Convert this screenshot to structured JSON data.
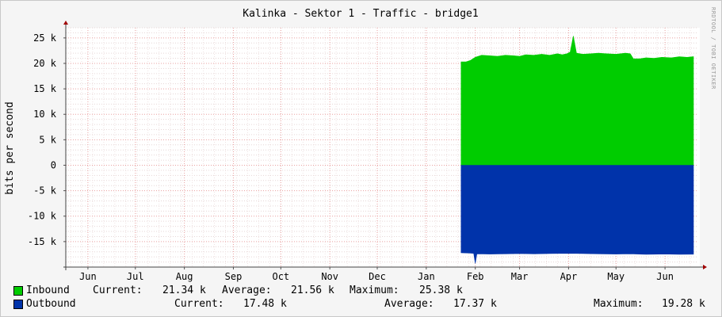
{
  "chart_data": {
    "type": "area",
    "title": "Kalinka - Sektor 1 - Traffic - bridge1",
    "ylabel": "bits per second",
    "watermark": "RRDTOOL / TOBI OETIKER",
    "ylim": [
      -20000,
      27000
    ],
    "grid": true,
    "yticks": [
      {
        "value": 25000,
        "label": "25 k"
      },
      {
        "value": 20000,
        "label": "20 k"
      },
      {
        "value": 15000,
        "label": "15 k"
      },
      {
        "value": 10000,
        "label": "10 k"
      },
      {
        "value": 5000,
        "label": "5 k"
      },
      {
        "value": 0,
        "label": "0"
      },
      {
        "value": -5000,
        "label": "-5 k"
      },
      {
        "value": -10000,
        "label": "-10 k"
      },
      {
        "value": -15000,
        "label": "-15 k"
      }
    ],
    "xlim": [
      "2012-05-18",
      "2013-06-22"
    ],
    "xticks": [
      {
        "date": "2012-06-01",
        "label": "Jun"
      },
      {
        "date": "2012-07-01",
        "label": "Jul"
      },
      {
        "date": "2012-08-01",
        "label": "Aug"
      },
      {
        "date": "2012-09-01",
        "label": "Sep"
      },
      {
        "date": "2012-10-01",
        "label": "Oct"
      },
      {
        "date": "2012-11-01",
        "label": "Nov"
      },
      {
        "date": "2012-12-01",
        "label": "Dec"
      },
      {
        "date": "2013-01-01",
        "label": "Jan"
      },
      {
        "date": "2013-02-01",
        "label": "Feb"
      },
      {
        "date": "2013-03-01",
        "label": "Mar"
      },
      {
        "date": "2013-04-01",
        "label": "Apr"
      },
      {
        "date": "2013-05-01",
        "label": "May"
      },
      {
        "date": "2013-06-01",
        "label": "Jun"
      }
    ],
    "series": [
      {
        "name": "Inbound",
        "color": "#00cc00",
        "points": [
          [
            "2013-01-23",
            20300
          ],
          [
            "2013-01-26",
            20300
          ],
          [
            "2013-01-29",
            20600
          ],
          [
            "2013-02-01",
            21200
          ],
          [
            "2013-02-05",
            21600
          ],
          [
            "2013-02-10",
            21500
          ],
          [
            "2013-02-15",
            21400
          ],
          [
            "2013-02-20",
            21600
          ],
          [
            "2013-02-25",
            21500
          ],
          [
            "2013-03-01",
            21400
          ],
          [
            "2013-03-05",
            21700
          ],
          [
            "2013-03-10",
            21600
          ],
          [
            "2013-03-15",
            21800
          ],
          [
            "2013-03-20",
            21600
          ],
          [
            "2013-03-25",
            21900
          ],
          [
            "2013-03-28",
            21700
          ],
          [
            "2013-03-31",
            21900
          ],
          [
            "2013-04-02",
            22200
          ],
          [
            "2013-04-04",
            25380
          ],
          [
            "2013-04-06",
            22000
          ],
          [
            "2013-04-10",
            21800
          ],
          [
            "2013-04-15",
            21900
          ],
          [
            "2013-04-20",
            22000
          ],
          [
            "2013-04-25",
            21900
          ],
          [
            "2013-05-01",
            21800
          ],
          [
            "2013-05-07",
            22000
          ],
          [
            "2013-05-10",
            21900
          ],
          [
            "2013-05-12",
            20900
          ],
          [
            "2013-05-16",
            20900
          ],
          [
            "2013-05-20",
            21100
          ],
          [
            "2013-05-25",
            21000
          ],
          [
            "2013-05-30",
            21200
          ],
          [
            "2013-06-05",
            21100
          ],
          [
            "2013-06-10",
            21300
          ],
          [
            "2013-06-15",
            21200
          ],
          [
            "2013-06-19",
            21340
          ]
        ]
      },
      {
        "name": "Outbound",
        "color": "#0033aa",
        "points": [
          [
            "2013-01-23",
            -17200
          ],
          [
            "2013-01-28",
            -17250
          ],
          [
            "2013-01-31",
            -17300
          ],
          [
            "2013-02-01",
            -19280
          ],
          [
            "2013-02-02",
            -17400
          ],
          [
            "2013-02-10",
            -17450
          ],
          [
            "2013-02-20",
            -17400
          ],
          [
            "2013-03-01",
            -17350
          ],
          [
            "2013-03-10",
            -17400
          ],
          [
            "2013-03-20",
            -17350
          ],
          [
            "2013-04-01",
            -17300
          ],
          [
            "2013-04-10",
            -17350
          ],
          [
            "2013-04-20",
            -17400
          ],
          [
            "2013-05-01",
            -17450
          ],
          [
            "2013-05-10",
            -17400
          ],
          [
            "2013-05-20",
            -17500
          ],
          [
            "2013-06-01",
            -17450
          ],
          [
            "2013-06-10",
            -17500
          ],
          [
            "2013-06-19",
            -17480
          ]
        ]
      }
    ]
  },
  "legend": {
    "inbound": {
      "name": "Inbound",
      "current_label": "Current:",
      "current": "21.34 k",
      "average_label": "Average:",
      "average": "21.56 k",
      "maximum_label": "Maximum:",
      "maximum": "25.38 k"
    },
    "outbound": {
      "name": "Outbound",
      "current_label": "Current:",
      "current": "17.48 k",
      "average_label": "Average:",
      "average": "17.37 k",
      "maximum_label": "Maximum:",
      "maximum": "19.28 k"
    }
  }
}
